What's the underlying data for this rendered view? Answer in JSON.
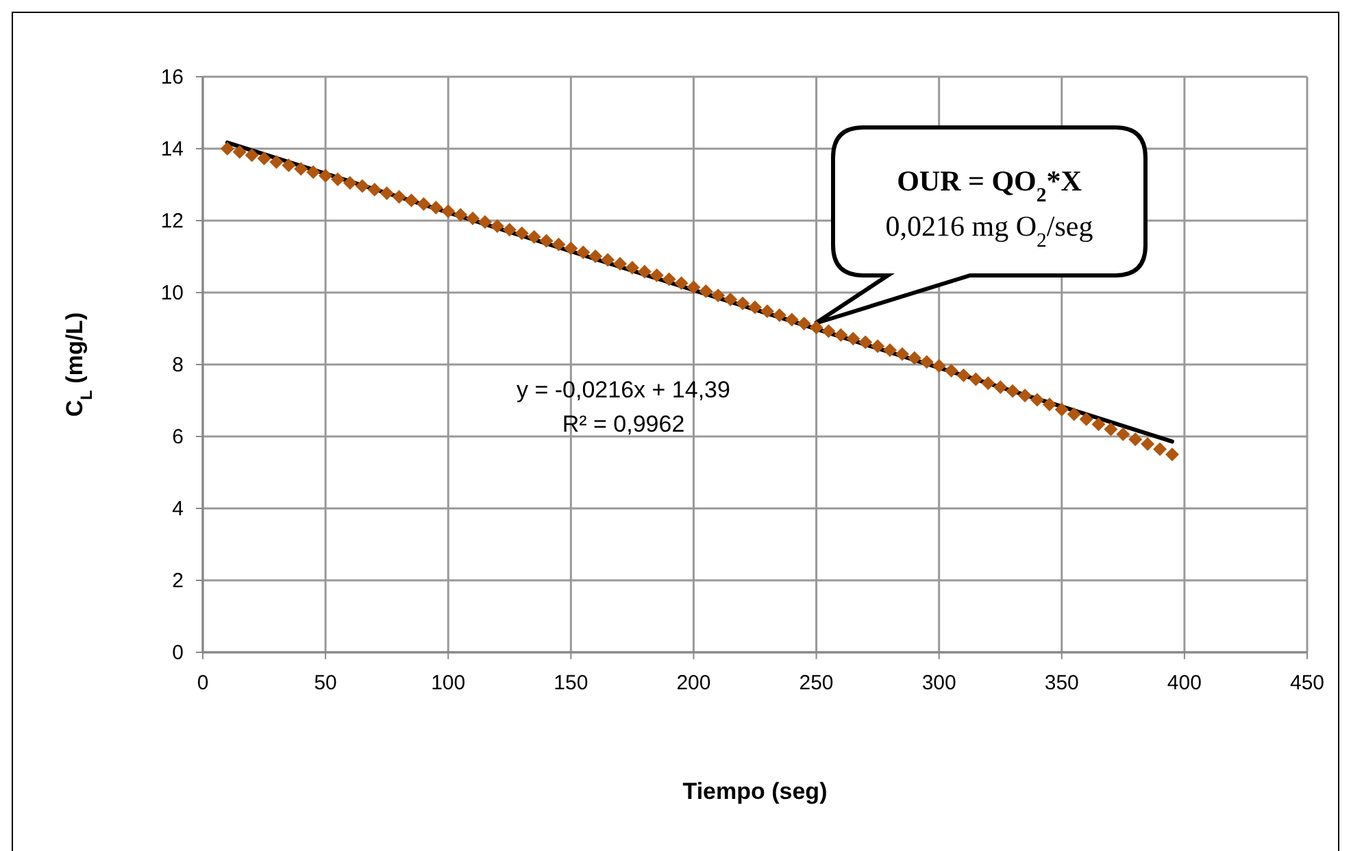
{
  "chart_data": {
    "type": "scatter",
    "xlabel": "Tiempo (seg)",
    "ylabel": "C$_{L}$ (mg/L)",
    "xlim": [
      0,
      450
    ],
    "xticks": [
      0,
      50,
      100,
      150,
      200,
      250,
      300,
      350,
      400,
      450
    ],
    "ylim": [
      0,
      16
    ],
    "yticks": [
      0,
      2,
      4,
      6,
      8,
      10,
      12,
      14,
      16
    ],
    "grid": true,
    "series": [
      {
        "marker": "diamond",
        "color": "#b0560f",
        "x": [
          10,
          15,
          20,
          25,
          30,
          35,
          40,
          45,
          50,
          55,
          60,
          65,
          70,
          75,
          80,
          85,
          90,
          95,
          100,
          105,
          110,
          115,
          120,
          125,
          130,
          135,
          140,
          145,
          150,
          155,
          160,
          165,
          170,
          175,
          180,
          185,
          190,
          195,
          200,
          205,
          210,
          215,
          220,
          225,
          230,
          235,
          240,
          245,
          250,
          255,
          260,
          265,
          270,
          275,
          280,
          285,
          290,
          295,
          300,
          305,
          310,
          315,
          320,
          325,
          330,
          335,
          340,
          345,
          350,
          355,
          360,
          365,
          370,
          375,
          380,
          385,
          390,
          395
        ],
        "values": [
          14.0,
          13.91,
          13.82,
          13.73,
          13.63,
          13.54,
          13.44,
          13.35,
          13.25,
          13.15,
          13.05,
          12.96,
          12.86,
          12.76,
          12.66,
          12.56,
          12.46,
          12.36,
          12.26,
          12.16,
          12.06,
          11.96,
          11.85,
          11.75,
          11.65,
          11.55,
          11.44,
          11.34,
          11.23,
          11.12,
          11.01,
          10.91,
          10.8,
          10.69,
          10.58,
          10.48,
          10.37,
          10.26,
          10.15,
          10.04,
          9.92,
          9.81,
          9.7,
          9.59,
          9.48,
          9.37,
          9.25,
          9.14,
          9.03,
          8.93,
          8.82,
          8.72,
          8.62,
          8.51,
          8.4,
          8.29,
          8.18,
          8.07,
          7.96,
          7.83,
          7.7,
          7.59,
          7.48,
          7.37,
          7.26,
          7.14,
          7.02,
          6.89,
          6.75,
          6.62,
          6.48,
          6.34,
          6.2,
          6.06,
          5.92,
          5.79,
          5.65,
          5.5
        ]
      },
      {
        "type": "line",
        "line_style": "solid",
        "color": "#000000",
        "x": [
          10,
          395
        ],
        "values": [
          14.17,
          5.86
        ]
      }
    ],
    "annotations": [
      "y = -0,0216x + 14,39",
      "R² = 0,9962",
      "OUR = QO$_{2}$*X\n0,0216 mg O$_{2}$/seg"
    ]
  }
}
